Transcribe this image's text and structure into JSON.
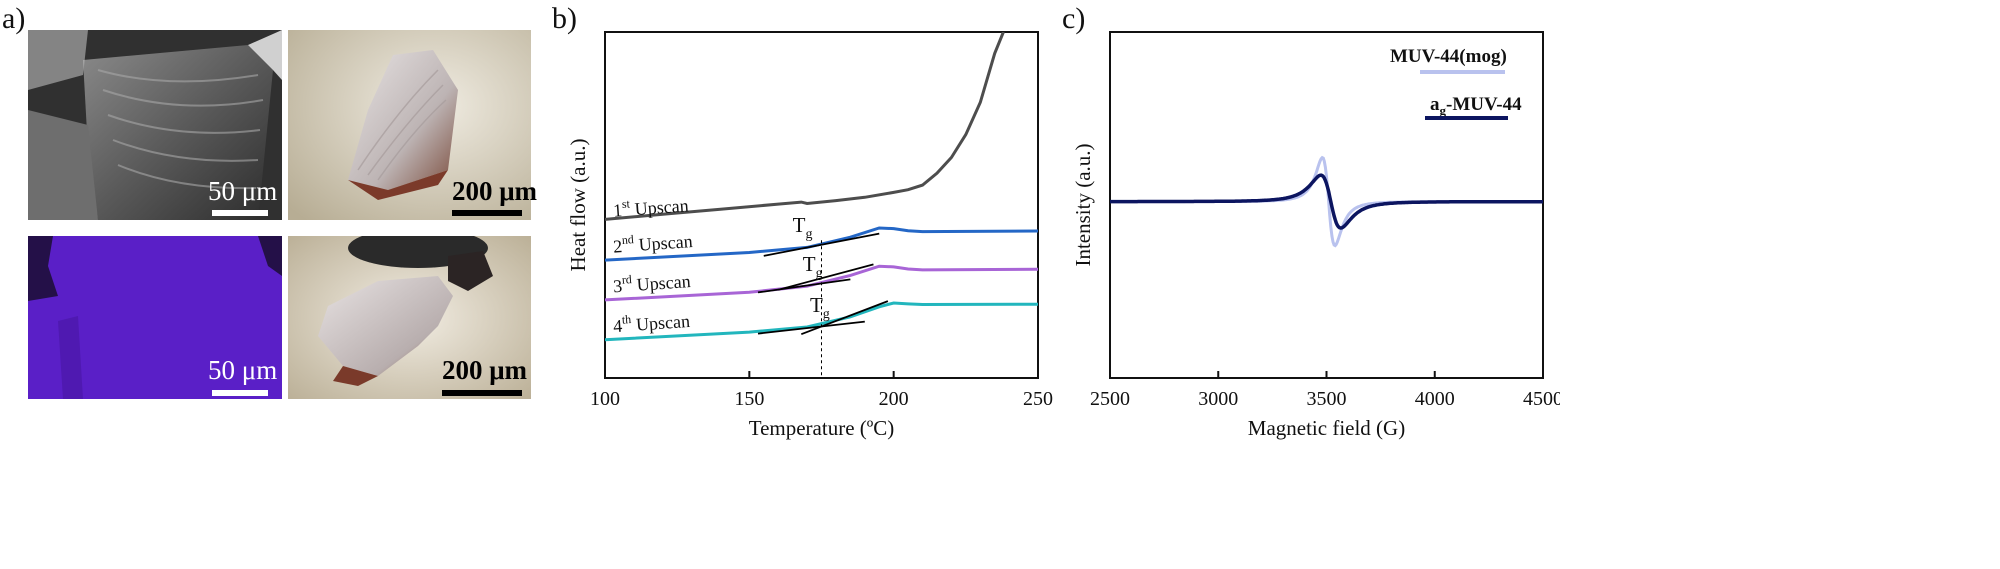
{
  "panel_labels": {
    "a": "a)",
    "b": "b)",
    "c": "c)"
  },
  "panel_a": {
    "sem_scale": "50 μm",
    "optical_scale_1": "200 μm",
    "edx_scale": "50 μm",
    "optical_scale_2": "200 μm"
  },
  "colors": {
    "upscan1": "#4d4d4d",
    "upscan2": "#2467c6",
    "upscan3": "#a865d6",
    "upscan4": "#22b6bd",
    "mog": "#b9c2ee",
    "glass": "#0c1560",
    "edx_map": "#5a1fc7"
  },
  "chart_data": [
    {
      "type": "line",
      "panel": "b",
      "xlabel": "Temperature (ºC)",
      "ylabel": "Heat flow (a.u.)",
      "xlim": [
        100,
        250
      ],
      "xticks": [
        100,
        150,
        200,
        250
      ],
      "yticks_shown": false,
      "tg_marker_temperature": 175,
      "annotation_tg": "T",
      "annotation_tg_sub": "g",
      "series": [
        {
          "name": "1st Upscan",
          "label_main": "1",
          "label_sup": "st",
          "label_rest": " Upscan",
          "x": [
            100,
            120,
            140,
            160,
            168,
            170,
            180,
            190,
            200,
            205,
            210,
            215,
            220,
            225,
            230,
            235,
            238
          ],
          "y": [
            0.76,
            1.09,
            1.42,
            1.76,
            1.89,
            1.8,
            1.99,
            2.2,
            2.52,
            2.7,
            3.0,
            3.78,
            4.8,
            6.3,
            8.4,
            11.6,
            13.0
          ]
        },
        {
          "name": "2nd Upscan",
          "label_main": "2",
          "label_sup": "nd",
          "label_rest": " Upscan",
          "x": [
            100,
            150,
            170,
            185,
            195,
            200,
            205,
            210,
            250
          ],
          "y": [
            -1.9,
            -1.4,
            -1.07,
            -0.4,
            0.2,
            0.16,
            0.02,
            -0.04,
            0.0
          ]
        },
        {
          "name": "3rd Upscan",
          "label_main": "3",
          "label_sup": "rd",
          "label_rest": " Upscan",
          "x": [
            100,
            150,
            170,
            185,
            195,
            200,
            205,
            210,
            250
          ],
          "y": [
            -4.5,
            -4.0,
            -3.6,
            -2.9,
            -2.3,
            -2.34,
            -2.48,
            -2.54,
            -2.5
          ]
        },
        {
          "name": "4th Upscan",
          "label_main": "4",
          "label_sup": "th",
          "label_rest": " Upscan",
          "x": [
            100,
            150,
            170,
            185,
            195,
            200,
            205,
            210,
            250
          ],
          "y": [
            -7.1,
            -6.6,
            -6.27,
            -5.6,
            -4.95,
            -4.7,
            -4.76,
            -4.8,
            -4.78
          ]
        }
      ],
      "tangents": [
        {
          "x": [
            155,
            195
          ],
          "y": [
            -1.62,
            -0.17
          ]
        },
        {
          "x": [
            153,
            185
          ],
          "y": [
            -4.01,
            -3.16
          ]
        },
        {
          "x": [
            160,
            193
          ],
          "y": [
            -3.84,
            -2.18
          ]
        },
        {
          "x": [
            153,
            190
          ],
          "y": [
            -6.7,
            -5.92
          ]
        },
        {
          "x": [
            168,
            198
          ],
          "y": [
            -6.74,
            -4.58
          ]
        }
      ],
      "ylim": [
        -9.6,
        13.0
      ]
    },
    {
      "type": "line",
      "panel": "c",
      "xlabel": "Magnetic field (G)",
      "ylabel": "Intensity (a.u.)",
      "xlim": [
        2500,
        4500
      ],
      "xticks": [
        2500,
        3000,
        3500,
        4000,
        4500
      ],
      "yticks_shown": false,
      "ylim": [
        -1.3,
        1.25
      ],
      "legend_position": "top-right",
      "series": [
        {
          "name": "MUV-44(mog)",
          "type": "derivative-lorentzian",
          "center": 3510,
          "width": 50,
          "amplitude": 1.0
        },
        {
          "name": "ag-MUV-44",
          "label_main": "a",
          "label_sub": "g",
          "label_rest": "-MUV-44",
          "type": "derivative-lorentzian",
          "center": 3520,
          "width": 80,
          "amplitude": 0.6
        }
      ]
    }
  ]
}
